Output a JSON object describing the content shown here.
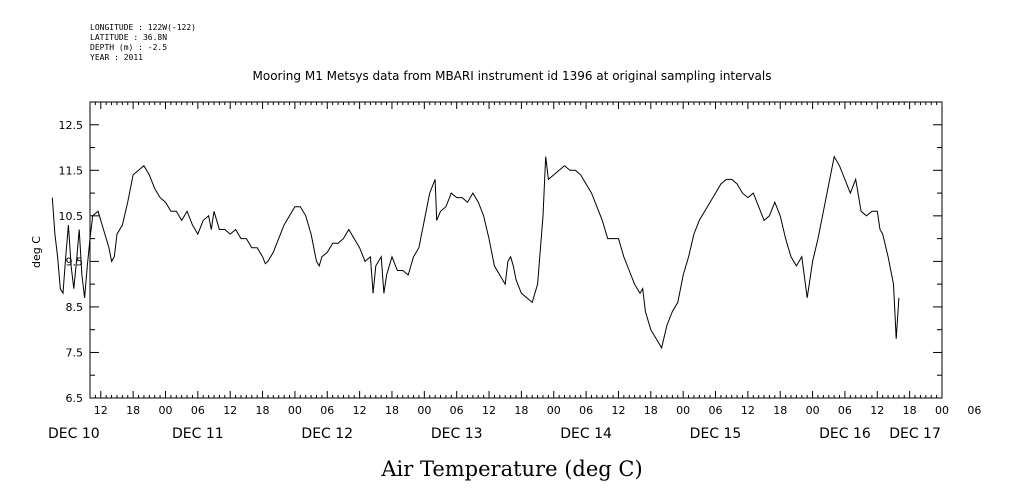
{
  "header": {
    "lines": [
      "LONGITUDE : 122W(-122)",
      "LATITUDE : 36.8N",
      "DEPTH (m) : -2.5",
      "YEAR : 2011"
    ]
  },
  "chart_data": {
    "type": "line",
    "title": "Mooring M1 Metsys data from MBARI instrument id 1396 at original sampling intervals",
    "xlabel": "Air Temperature (deg C)",
    "ylabel": "deg C",
    "ylim": [
      6.5,
      13.0
    ],
    "yticks": [
      "6.5",
      "7.5",
      "8.5",
      "9.5",
      "10.5",
      "11.5",
      "12.5"
    ],
    "x_unit": "hours since DEC 10 00",
    "xlim": [
      3,
      160
    ],
    "hour_tick_labels": [
      "12",
      "18",
      "00",
      "06",
      "12",
      "18",
      "00",
      "06",
      "12",
      "18",
      "00",
      "06",
      "12",
      "18",
      "00",
      "06",
      "12",
      "18",
      "00",
      "06",
      "12",
      "18",
      "00",
      "06",
      "12",
      "18",
      "00",
      "06"
    ],
    "day_labels": [
      "DEC 10",
      "DEC 11",
      "DEC 12",
      "DEC 13",
      "DEC 14",
      "DEC 15",
      "DEC 16",
      "DEC 17"
    ],
    "grid": false,
    "series": [
      {
        "points": [
          [
            3.0,
            10.9
          ],
          [
            3.5,
            10.1
          ],
          [
            4.0,
            9.6
          ],
          [
            4.5,
            8.9
          ],
          [
            5.0,
            8.8
          ],
          [
            5.5,
            9.6
          ],
          [
            6.0,
            10.3
          ],
          [
            6.5,
            9.4
          ],
          [
            7.0,
            8.9
          ],
          [
            7.5,
            9.5
          ],
          [
            8.0,
            10.2
          ],
          [
            8.5,
            9.2
          ],
          [
            9.0,
            8.7
          ],
          [
            9.5,
            9.4
          ],
          [
            10.0,
            10.0
          ],
          [
            10.5,
            10.5
          ],
          [
            11.5,
            10.6
          ],
          [
            12.5,
            10.2
          ],
          [
            13.5,
            9.8
          ],
          [
            14.0,
            9.5
          ],
          [
            14.5,
            9.6
          ],
          [
            15.0,
            10.1
          ],
          [
            16.0,
            10.3
          ],
          [
            17.0,
            10.8
          ],
          [
            18.0,
            11.4
          ],
          [
            19.0,
            11.5
          ],
          [
            20.0,
            11.6
          ],
          [
            21.0,
            11.4
          ],
          [
            22.0,
            11.1
          ],
          [
            23.0,
            10.9
          ],
          [
            24.0,
            10.8
          ],
          [
            25.0,
            10.6
          ],
          [
            26.0,
            10.6
          ],
          [
            27.0,
            10.4
          ],
          [
            28.0,
            10.6
          ],
          [
            29.0,
            10.3
          ],
          [
            30.0,
            10.1
          ],
          [
            31.0,
            10.4
          ],
          [
            32.0,
            10.5
          ],
          [
            32.5,
            10.2
          ],
          [
            33.0,
            10.6
          ],
          [
            34.0,
            10.2
          ],
          [
            35.0,
            10.2
          ],
          [
            36.0,
            10.1
          ],
          [
            37.0,
            10.2
          ],
          [
            38.0,
            10.0
          ],
          [
            39.0,
            10.0
          ],
          [
            40.0,
            9.8
          ],
          [
            41.0,
            9.8
          ],
          [
            42.0,
            9.6
          ],
          [
            42.5,
            9.45
          ],
          [
            43.0,
            9.5
          ],
          [
            44.0,
            9.7
          ],
          [
            45.0,
            10.0
          ],
          [
            46.0,
            10.3
          ],
          [
            47.0,
            10.5
          ],
          [
            48.0,
            10.7
          ],
          [
            49.0,
            10.7
          ],
          [
            50.0,
            10.5
          ],
          [
            51.0,
            10.1
          ],
          [
            52.0,
            9.5
          ],
          [
            52.5,
            9.4
          ],
          [
            53.0,
            9.6
          ],
          [
            54.0,
            9.7
          ],
          [
            55.0,
            9.9
          ],
          [
            56.0,
            9.9
          ],
          [
            57.0,
            10.0
          ],
          [
            58.0,
            10.2
          ],
          [
            59.0,
            10.0
          ],
          [
            60.0,
            9.8
          ],
          [
            61.0,
            9.5
          ],
          [
            62.0,
            9.6
          ],
          [
            62.5,
            8.8
          ],
          [
            63.0,
            9.4
          ],
          [
            64.0,
            9.6
          ],
          [
            64.5,
            8.8
          ],
          [
            65.0,
            9.2
          ],
          [
            66.0,
            9.6
          ],
          [
            67.0,
            9.3
          ],
          [
            68.0,
            9.3
          ],
          [
            69.0,
            9.2
          ],
          [
            70.0,
            9.6
          ],
          [
            71.0,
            9.8
          ],
          [
            72.0,
            10.4
          ],
          [
            73.0,
            11.0
          ],
          [
            74.0,
            11.3
          ],
          [
            74.3,
            10.4
          ],
          [
            75.0,
            10.6
          ],
          [
            76.0,
            10.7
          ],
          [
            77.0,
            11.0
          ],
          [
            78.0,
            10.9
          ],
          [
            79.0,
            10.9
          ],
          [
            80.0,
            10.8
          ],
          [
            81.0,
            11.0
          ],
          [
            82.0,
            10.8
          ],
          [
            83.0,
            10.5
          ],
          [
            84.0,
            10.0
          ],
          [
            85.0,
            9.4
          ],
          [
            86.0,
            9.2
          ],
          [
            87.0,
            9.0
          ],
          [
            87.5,
            9.5
          ],
          [
            88.0,
            9.6
          ],
          [
            88.5,
            9.4
          ],
          [
            89.0,
            9.1
          ],
          [
            90.0,
            8.8
          ],
          [
            91.0,
            8.7
          ],
          [
            92.0,
            8.6
          ],
          [
            93.0,
            9.0
          ],
          [
            94.0,
            10.5
          ],
          [
            94.5,
            11.8
          ],
          [
            95.0,
            11.3
          ],
          [
            96.0,
            11.4
          ],
          [
            97.0,
            11.5
          ],
          [
            98.0,
            11.6
          ],
          [
            99.0,
            11.5
          ],
          [
            100.0,
            11.5
          ],
          [
            101.0,
            11.4
          ],
          [
            102.0,
            11.2
          ],
          [
            103.0,
            11.0
          ],
          [
            104.0,
            10.7
          ],
          [
            105.0,
            10.4
          ],
          [
            106.0,
            10.0
          ],
          [
            107.0,
            10.0
          ],
          [
            108.0,
            10.0
          ],
          [
            109.0,
            9.6
          ],
          [
            110.0,
            9.3
          ],
          [
            111.0,
            9.0
          ],
          [
            112.0,
            8.8
          ],
          [
            112.5,
            8.9
          ],
          [
            113.0,
            8.4
          ],
          [
            114.0,
            8.0
          ],
          [
            115.0,
            7.8
          ],
          [
            116.0,
            7.6
          ],
          [
            117.0,
            8.1
          ],
          [
            118.0,
            8.4
          ],
          [
            119.0,
            8.6
          ],
          [
            120.0,
            9.2
          ],
          [
            121.0,
            9.6
          ],
          [
            122.0,
            10.1
          ],
          [
            123.0,
            10.4
          ],
          [
            124.0,
            10.6
          ],
          [
            125.0,
            10.8
          ],
          [
            126.0,
            11.0
          ],
          [
            127.0,
            11.2
          ],
          [
            128.0,
            11.3
          ],
          [
            129.0,
            11.3
          ],
          [
            130.0,
            11.2
          ],
          [
            131.0,
            11.0
          ],
          [
            132.0,
            10.9
          ],
          [
            133.0,
            11.0
          ],
          [
            134.0,
            10.7
          ],
          [
            135.0,
            10.4
          ],
          [
            136.0,
            10.5
          ],
          [
            137.0,
            10.8
          ],
          [
            138.0,
            10.5
          ],
          [
            139.0,
            10.0
          ],
          [
            140.0,
            9.6
          ],
          [
            141.0,
            9.4
          ],
          [
            142.0,
            9.6
          ],
          [
            143.0,
            8.7
          ],
          [
            144.0,
            9.5
          ],
          [
            145.0,
            10.0
          ],
          [
            146.0,
            10.6
          ],
          [
            147.0,
            11.2
          ],
          [
            148.0,
            11.8
          ],
          [
            149.0,
            11.6
          ],
          [
            150.0,
            11.3
          ],
          [
            151.0,
            11.0
          ],
          [
            152.0,
            11.3
          ],
          [
            153.0,
            10.6
          ],
          [
            154.0,
            10.5
          ],
          [
            155.0,
            10.6
          ],
          [
            156.0,
            10.6
          ],
          [
            156.5,
            10.2
          ],
          [
            157.0,
            10.1
          ],
          [
            158.0,
            9.6
          ],
          [
            159.0,
            9.0
          ],
          [
            159.5,
            7.8
          ],
          [
            160.0,
            8.7
          ]
        ]
      }
    ]
  }
}
